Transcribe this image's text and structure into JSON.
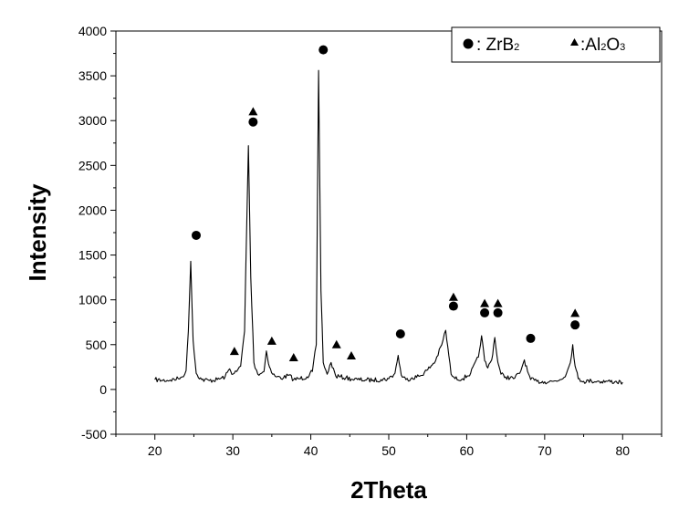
{
  "chart_data": {
    "type": "line",
    "title": "",
    "xlabel": "2Theta",
    "ylabel": "Intensity",
    "xlim": [
      15,
      85
    ],
    "ylim": [
      -500,
      4000
    ],
    "xticks": [
      20,
      30,
      40,
      50,
      60,
      70,
      80
    ],
    "yticks": [
      -500,
      0,
      500,
      1000,
      1500,
      2000,
      2500,
      3000,
      3500,
      4000
    ],
    "grid": false,
    "legend_position": "top-right",
    "legend": [
      {
        "marker": "circle",
        "label_parts": [
          ": ZrB",
          "2"
        ]
      },
      {
        "marker": "triangle",
        "label_parts": [
          ":Al",
          "2",
          "O",
          "3"
        ]
      }
    ],
    "series": [
      {
        "type": "line",
        "color": "#000000",
        "x": [
          20,
          21,
          22,
          23,
          23.5,
          24,
          24.3,
          24.6,
          24.9,
          25.3,
          26,
          27,
          28,
          29,
          29.6,
          30,
          30.5,
          31,
          31.5,
          31.8,
          32.0,
          32.3,
          32.7,
          33.2,
          34,
          34.3,
          34.7,
          35.1,
          35.6,
          36.5,
          37.2,
          37.8,
          38.5,
          39.5,
          40.2,
          40.7,
          41.0,
          41.3,
          41.6,
          42.1,
          42.6,
          43.2,
          43.8,
          44.5,
          45.2,
          46,
          47,
          48,
          49,
          50,
          50.8,
          51.2,
          51.6,
          52.2,
          53,
          54,
          55,
          56,
          56.8,
          57.3,
          57.7,
          58.0,
          58.5,
          59.5,
          60.5,
          61.5,
          61.9,
          62.3,
          62.7,
          63.2,
          63.6,
          64.0,
          64.4,
          65,
          66,
          66.8,
          67.4,
          67.8,
          68.2,
          69,
          70,
          71,
          72,
          72.8,
          73.3,
          73.6,
          73.9,
          74.3,
          75,
          76,
          77,
          78,
          79,
          80
        ],
        "y": [
          110,
          100,
          105,
          120,
          140,
          210,
          650,
          1430,
          550,
          180,
          110,
          100,
          110,
          140,
          230,
          170,
          200,
          260,
          650,
          1900,
          2720,
          1250,
          300,
          170,
          200,
          430,
          250,
          170,
          140,
          130,
          160,
          110,
          120,
          140,
          200,
          500,
          3560,
          1100,
          300,
          170,
          300,
          150,
          140,
          130,
          115,
          110,
          105,
          105,
          110,
          120,
          180,
          380,
          160,
          110,
          130,
          150,
          220,
          320,
          500,
          660,
          380,
          170,
          120,
          120,
          180,
          360,
          600,
          320,
          240,
          330,
          580,
          300,
          170,
          140,
          120,
          180,
          330,
          200,
          110,
          90,
          85,
          90,
          110,
          180,
          300,
          500,
          260,
          120,
          90,
          95,
          90,
          90,
          85,
          80
        ]
      }
    ],
    "annotations": [
      {
        "marker": "circle",
        "x": 25.3,
        "y": 1720
      },
      {
        "marker": "circle",
        "x": 32.6,
        "y": 2985
      },
      {
        "marker": "triangle",
        "x": 32.6,
        "y": 3100
      },
      {
        "marker": "triangle",
        "x": 30.2,
        "y": 425
      },
      {
        "marker": "triangle",
        "x": 35.0,
        "y": 540
      },
      {
        "marker": "triangle",
        "x": 37.8,
        "y": 355
      },
      {
        "marker": "circle",
        "x": 41.6,
        "y": 3790
      },
      {
        "marker": "triangle",
        "x": 43.3,
        "y": 500
      },
      {
        "marker": "triangle",
        "x": 45.2,
        "y": 375
      },
      {
        "marker": "circle",
        "x": 51.5,
        "y": 620
      },
      {
        "marker": "triangle",
        "x": 58.3,
        "y": 1030
      },
      {
        "marker": "circle",
        "x": 58.3,
        "y": 930
      },
      {
        "marker": "triangle",
        "x": 62.3,
        "y": 960
      },
      {
        "marker": "circle",
        "x": 62.3,
        "y": 855
      },
      {
        "marker": "triangle",
        "x": 64.0,
        "y": 960
      },
      {
        "marker": "circle",
        "x": 64.0,
        "y": 855
      },
      {
        "marker": "circle",
        "x": 68.2,
        "y": 570
      },
      {
        "marker": "triangle",
        "x": 73.9,
        "y": 850
      },
      {
        "marker": "circle",
        "x": 73.9,
        "y": 720
      }
    ]
  }
}
